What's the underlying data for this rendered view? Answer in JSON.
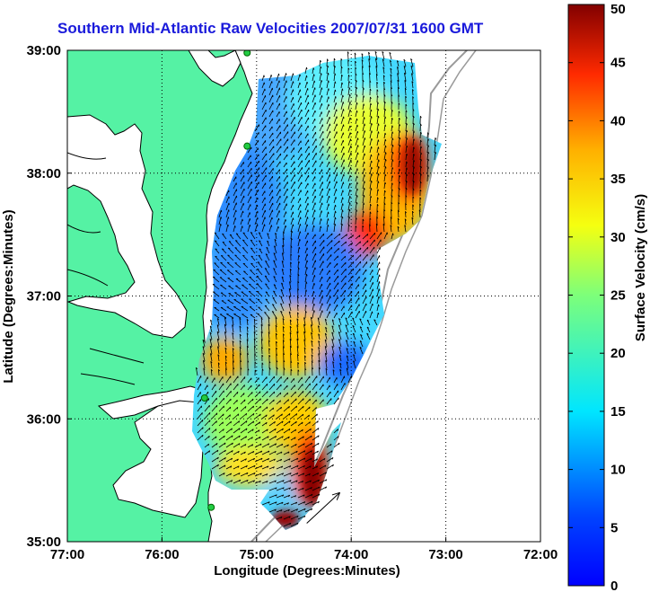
{
  "title": "Southern Mid-Atlantic Raw Velocities 2007/07/31 1600 GMT",
  "x_axis": {
    "label": "Longitude (Degrees:Minutes)",
    "ticks": [
      "77:00",
      "76:00",
      "75:00",
      "74:00",
      "73:00",
      "72:00"
    ]
  },
  "y_axis": {
    "label": "Latitude (Degrees:Minutes)",
    "ticks": [
      "39:00",
      "38:00",
      "37:00",
      "36:00",
      "35:00"
    ]
  },
  "colorbar": {
    "label": "Surface Velocity (cm/s)",
    "ticks": [
      "0",
      "5",
      "10",
      "15",
      "20",
      "25",
      "30",
      "35",
      "40",
      "45",
      "50"
    ],
    "min": 0,
    "max": 50,
    "colormap": "jet"
  },
  "colors": {
    "title": "#1a1adb",
    "land": "#55f2a4",
    "water": "#ffffff",
    "station_marker": "#22cc44",
    "coastline": "#000000",
    "bathymetry_contour": "#9a9a9a"
  },
  "map": {
    "lon_range": [
      -77,
      -72
    ],
    "lat_range": [
      35,
      39
    ],
    "grid": "dotted",
    "stations": [
      {
        "lon": -75.1,
        "lat": 38.98
      },
      {
        "lon": -75.1,
        "lat": 38.22
      },
      {
        "lon": -75.55,
        "lat": 36.17
      },
      {
        "lon": -75.48,
        "lat": 35.28
      }
    ],
    "scale_arrow": {
      "lon": -74.47,
      "lat": 35.15,
      "dlon": 0.35,
      "dlat": 0.25
    }
  }
}
